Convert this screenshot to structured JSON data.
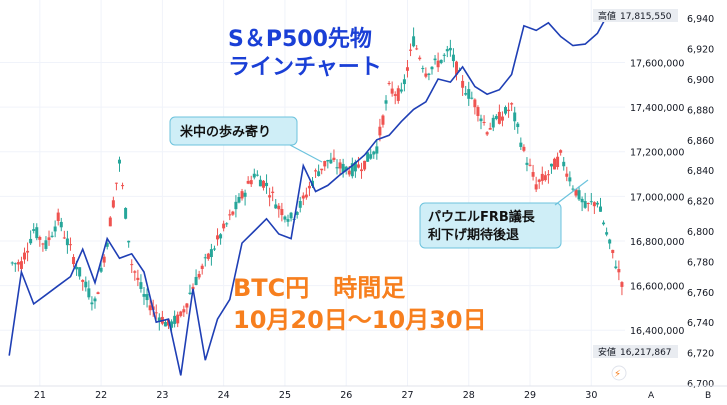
{
  "colors": {
    "up": "#26a69a",
    "down": "#ef5350",
    "sp_line": "#1f3fb5",
    "callout_fill": "#cfeef7",
    "callout_stroke": "#6cc3dd",
    "high_box": "#e9ecf1"
  },
  "title_sp": [
    "S＆P500先物",
    "ラインチャート"
  ],
  "title_btc": [
    "BTC円　時間足",
    "10月20日～10月30日"
  ],
  "callout_1": "米中の歩み寄り",
  "callout_2": [
    "パウエルFRB議長",
    "利下げ期待後退"
  ],
  "high_label": "高値",
  "high_value": "17,815,550",
  "low_label": "安値",
  "low_value": "16,217,867",
  "footer_letter": "A",
  "chart_data": {
    "type": "line",
    "x_label_ticks": [
      "21",
      "22",
      "23",
      "24",
      "25",
      "26",
      "27",
      "28",
      "29",
      "30"
    ],
    "y_left_ticks": [
      "17,600,000",
      "17,400,000",
      "17,200,000",
      "17,000,000",
      "16,800,000",
      "16,600,000",
      "16,400,000"
    ],
    "y_right_ticks": [
      "6,940",
      "6,920",
      "6,900",
      "6,880",
      "6,860",
      "6,840",
      "6,820",
      "6,800",
      "6,780",
      "6,760",
      "6,740",
      "6,720",
      "6,700"
    ],
    "btc_ylim": [
      16150000,
      17880000
    ],
    "sp_ylim": [
      6698,
      6952
    ],
    "series": [
      {
        "type": "candlestick",
        "x": [
          20.55,
          20.75,
          20.95,
          21.15,
          21.35,
          21.55,
          21.75,
          21.95,
          22.15,
          22.35,
          22.55,
          22.75,
          22.95,
          23.15,
          23.35,
          23.55,
          23.75,
          23.95,
          24.15,
          24.35,
          24.55,
          24.75,
          24.95,
          25.15,
          25.35,
          25.55,
          25.75,
          25.95,
          26.15,
          26.35,
          26.55,
          26.75,
          26.95,
          27.15,
          27.35,
          27.55,
          27.75,
          27.95,
          28.15,
          28.35,
          28.55,
          28.75,
          28.95,
          29.15,
          29.35,
          29.55,
          29.75,
          29.95,
          30.15,
          30.35
        ],
        "close": [
          16700000,
          16850000,
          16780000,
          16900000,
          16760000,
          16620000,
          16520000,
          16800000,
          17150000,
          16700000,
          16550000,
          16480000,
          16420000,
          16460000,
          16600000,
          16700000,
          16800000,
          16900000,
          17000000,
          17100000,
          17050000,
          16950000,
          16900000,
          16980000,
          17100000,
          17160000,
          17130000,
          17120000,
          17150000,
          17220000,
          17480000,
          17450000,
          17700000,
          17560000,
          17600000,
          17650000,
          17500000,
          17420000,
          17300000,
          17350000,
          17400000,
          17200000,
          17050000,
          17100000,
          17180000,
          17050000,
          16950000,
          16980000,
          16780000,
          16620000
        ]
      },
      {
        "type": "line",
        "x": [
          20.5,
          20.7,
          20.9,
          21.1,
          21.3,
          21.5,
          21.7,
          21.9,
          22.1,
          22.3,
          22.5,
          22.7,
          22.9,
          23.1,
          23.3,
          23.5,
          23.7,
          23.9,
          24.1,
          24.3,
          24.5,
          24.7,
          24.9,
          25.1,
          25.3,
          25.5,
          25.7,
          25.9,
          26.1,
          26.3,
          26.5,
          26.7,
          26.9,
          27.1,
          27.3,
          27.5,
          27.7,
          27.9,
          28.1,
          28.3,
          28.5,
          28.7,
          28.9,
          29.1,
          29.3,
          29.5,
          29.7,
          29.9,
          30.1,
          30.3
        ],
        "values": [
          6718,
          6773,
          6752,
          6758,
          6764,
          6770,
          6788,
          6766,
          6795,
          6782,
          6785,
          6773,
          6740,
          6742,
          6705,
          6762,
          6715,
          6742,
          6755,
          6792,
          6800,
          6808,
          6798,
          6795,
          6843,
          6826,
          6830,
          6837,
          6843,
          6850,
          6860,
          6863,
          6872,
          6880,
          6885,
          6900,
          6898,
          6908,
          6895,
          6890,
          6893,
          6903,
          6935,
          6932,
          6937,
          6928,
          6922,
          6923,
          6930,
          6945
        ]
      }
    ]
  }
}
